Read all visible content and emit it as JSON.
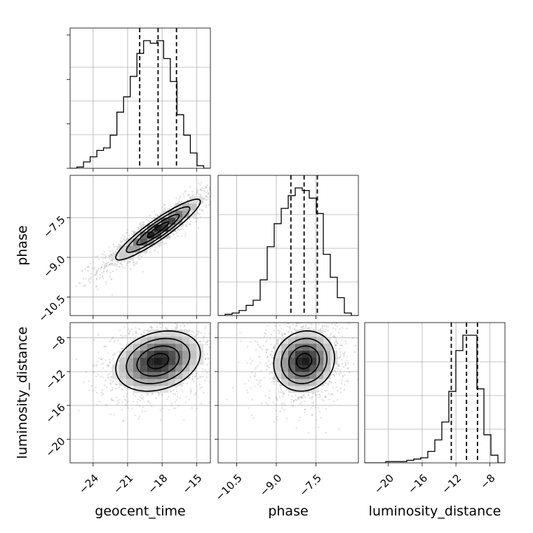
{
  "chart_data": {
    "type": "corner",
    "parameters": [
      "geocent_time",
      "phase",
      "luminosity_distance"
    ],
    "axis_labels": {
      "x": [
        "geocent_time",
        "phase",
        "luminosity_distance"
      ],
      "y": [
        "phase",
        "luminosity_distance"
      ]
    },
    "ranges": {
      "geocent_time": [
        -26.0,
        -13.8
      ],
      "phase": [
        -11.2,
        -5.9
      ],
      "luminosity_distance": [
        -22.8,
        -6.2
      ]
    },
    "ticks": {
      "geocent_time": [
        {
          "value": -24,
          "label": "−24"
        },
        {
          "value": -21,
          "label": "−21"
        },
        {
          "value": -18,
          "label": "−18"
        },
        {
          "value": -15,
          "label": "−15"
        }
      ],
      "phase": [
        {
          "value": -10.5,
          "label": "−10.5"
        },
        {
          "value": -9.0,
          "label": "−9.0"
        },
        {
          "value": -7.5,
          "label": "−7.5"
        }
      ],
      "luminosity_distance": [
        {
          "value": -20,
          "label": "−20"
        },
        {
          "value": -16,
          "label": "−16"
        },
        {
          "value": -12,
          "label": "−12"
        },
        {
          "value": -8,
          "label": "−8"
        }
      ]
    },
    "quantiles": {
      "geocent_time": [
        -19.95,
        -18.35,
        -16.75
      ],
      "phase": [
        -8.45,
        -7.95,
        -7.45
      ],
      "luminosity_distance": [
        -12.55,
        -10.75,
        -9.45
      ]
    },
    "histograms": {
      "geocent_time": [
        0,
        1,
        5,
        9,
        14,
        16,
        26,
        44,
        56,
        72,
        90,
        100,
        98,
        100,
        86,
        68,
        42,
        26,
        12,
        2,
        0
      ],
      "phase": [
        0,
        1,
        2,
        4,
        8,
        12,
        28,
        54,
        72,
        84,
        94,
        100,
        98,
        92,
        80,
        48,
        30,
        14,
        2,
        0
      ],
      "luminosity_distance": [
        0,
        0,
        0,
        1,
        1,
        1,
        2,
        3,
        4,
        9,
        18,
        32,
        56,
        88,
        100,
        100,
        58,
        22,
        6,
        0
      ]
    },
    "grid": true,
    "series": []
  }
}
